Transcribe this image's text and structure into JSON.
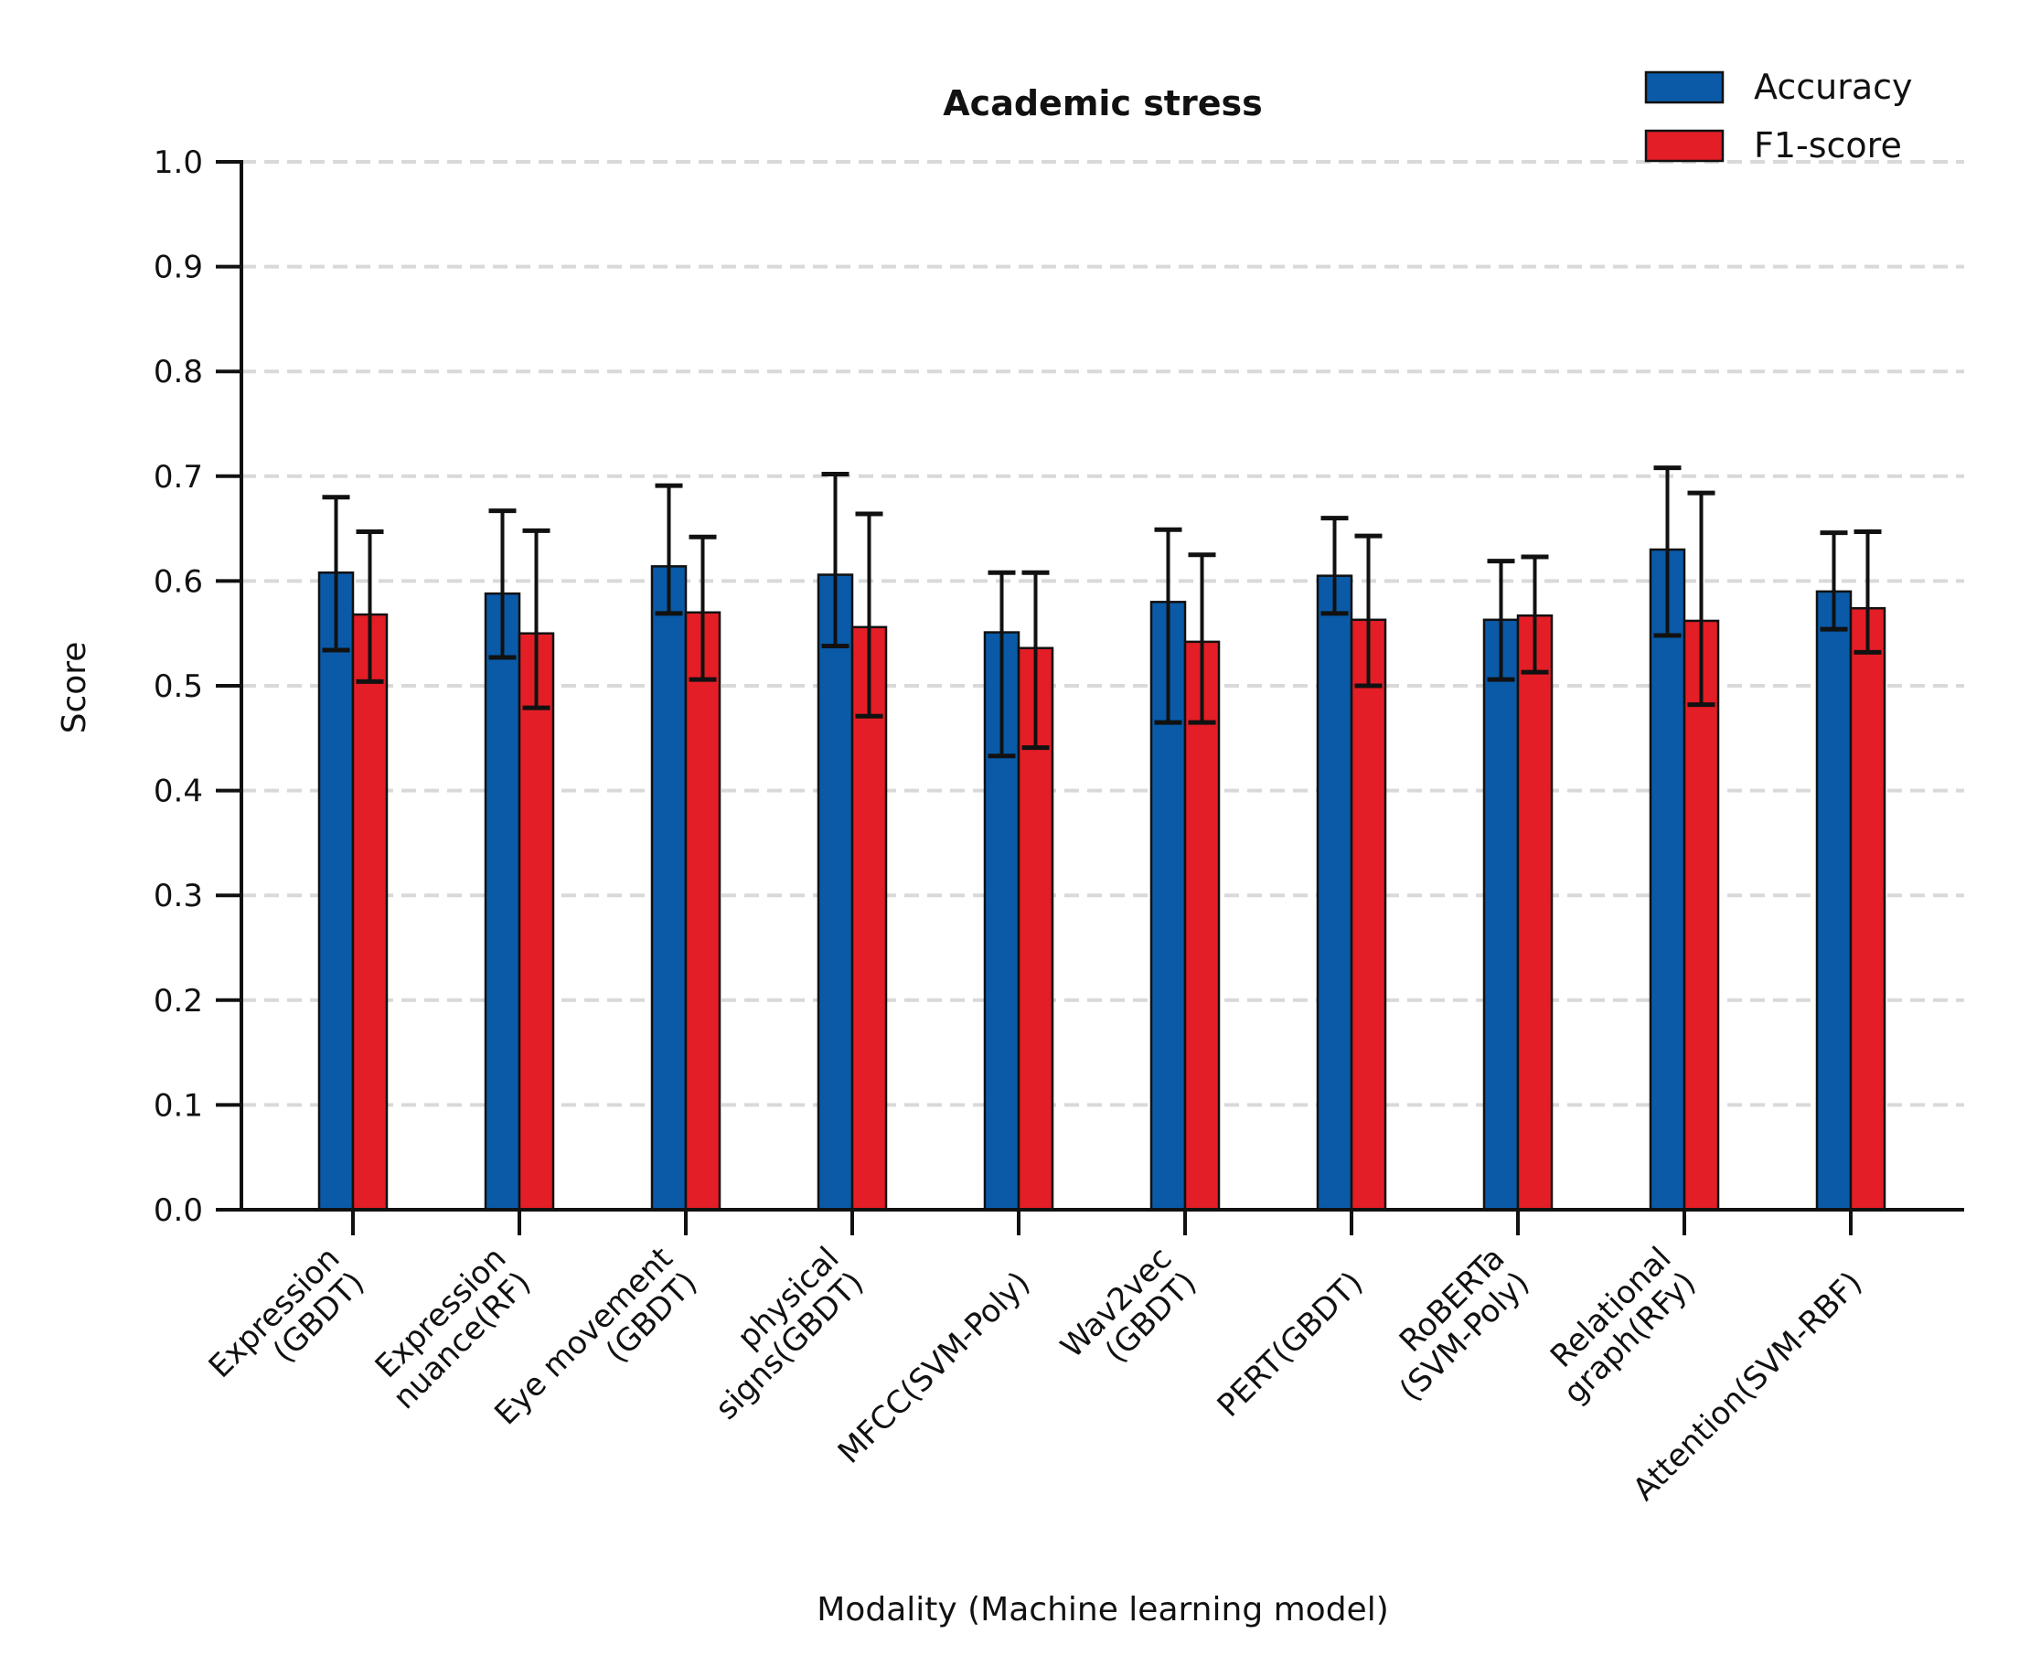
{
  "chart_data": {
    "type": "bar",
    "title": "Academic stress",
    "xlabel": "Modality (Machine learning model)",
    "ylabel": "Score",
    "ylim": [
      0,
      1.0
    ],
    "yticks": [
      "0.0",
      "0.1",
      "0.2",
      "0.3",
      "0.4",
      "0.5",
      "0.6",
      "0.7",
      "0.8",
      "0.9",
      "1.0"
    ],
    "grid": "horizontal dashed",
    "legend_position": "top-right",
    "categories": [
      [
        "Expression",
        "(GBDT)"
      ],
      [
        "Expression",
        "nuance(RF)"
      ],
      [
        "Eye movement",
        "(GBDT)"
      ],
      [
        "physical",
        "signs(GBDT)"
      ],
      [
        "MFCC(SVM-Poly)"
      ],
      [
        "Wav2vec",
        "(GBDT)"
      ],
      [
        "PERT(GBDT)"
      ],
      [
        "RoBERTa",
        "(SVM-Poly)"
      ],
      [
        "Relational",
        "graph(RFy)"
      ],
      [
        "Attention(SVM-RBF)"
      ]
    ],
    "series": [
      {
        "name": "Accuracy",
        "color": "#0a5aa8",
        "values": [
          0.608,
          0.588,
          0.614,
          0.606,
          0.551,
          0.58,
          0.605,
          0.563,
          0.63,
          0.59
        ],
        "err_low": [
          0.534,
          0.527,
          0.569,
          0.538,
          0.433,
          0.465,
          0.569,
          0.506,
          0.548,
          0.554
        ],
        "err_high": [
          0.68,
          0.667,
          0.691,
          0.702,
          0.608,
          0.649,
          0.66,
          0.619,
          0.708,
          0.646
        ]
      },
      {
        "name": "F1-score",
        "color": "#e31e26",
        "values": [
          0.568,
          0.55,
          0.57,
          0.556,
          0.536,
          0.542,
          0.563,
          0.567,
          0.562,
          0.574
        ],
        "err_low": [
          0.504,
          0.479,
          0.506,
          0.471,
          0.441,
          0.465,
          0.5,
          0.513,
          0.482,
          0.532
        ],
        "err_high": [
          0.647,
          0.648,
          0.642,
          0.664,
          0.608,
          0.625,
          0.643,
          0.623,
          0.684,
          0.647
        ]
      }
    ]
  }
}
